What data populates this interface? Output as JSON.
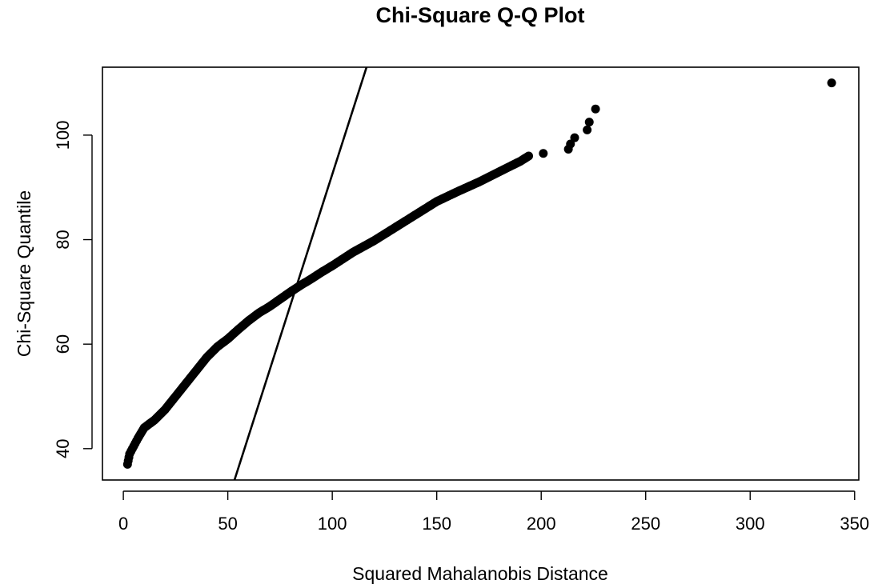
{
  "chart_data": {
    "type": "scatter",
    "title": "Chi-Square Q-Q Plot",
    "xlabel": "Squared Mahalanobis Distance",
    "ylabel": "Chi-Square Quantile",
    "xlim": [
      -10,
      352
    ],
    "ylim": [
      34,
      113
    ],
    "xticks": [
      0,
      50,
      100,
      150,
      200,
      250,
      300,
      350
    ],
    "yticks": [
      40,
      60,
      80,
      100
    ],
    "grid": false,
    "legend": "none",
    "reference_line": {
      "intercept": -32.5,
      "slope": 1.25
    },
    "point_color": "#000000",
    "curve_points": [
      [
        2,
        37
      ],
      [
        3,
        39
      ],
      [
        5,
        40.5
      ],
      [
        7,
        42
      ],
      [
        10,
        44
      ],
      [
        15,
        45.5
      ],
      [
        20,
        47.5
      ],
      [
        25,
        50
      ],
      [
        30,
        52.5
      ],
      [
        35,
        55
      ],
      [
        40,
        57.5
      ],
      [
        45,
        59.5
      ],
      [
        50,
        61
      ],
      [
        55,
        62.8
      ],
      [
        60,
        64.5
      ],
      [
        65,
        66
      ],
      [
        70,
        67.2
      ],
      [
        75,
        68.6
      ],
      [
        80,
        70
      ],
      [
        85,
        71.3
      ],
      [
        90,
        72.5
      ],
      [
        95,
        73.8
      ],
      [
        100,
        75
      ],
      [
        105,
        76.3
      ],
      [
        110,
        77.6
      ],
      [
        120,
        79.8
      ],
      [
        130,
        82.3
      ],
      [
        140,
        84.8
      ],
      [
        150,
        87.3
      ],
      [
        160,
        89.2
      ],
      [
        170,
        91
      ],
      [
        180,
        93
      ],
      [
        190,
        95
      ],
      [
        194,
        96
      ]
    ],
    "outliers": [
      [
        201,
        96.5
      ],
      [
        213,
        97.3
      ],
      [
        214,
        98.3
      ],
      [
        216,
        99.5
      ],
      [
        222,
        101
      ],
      [
        223,
        102.5
      ],
      [
        226,
        105
      ],
      [
        339,
        110
      ]
    ]
  }
}
